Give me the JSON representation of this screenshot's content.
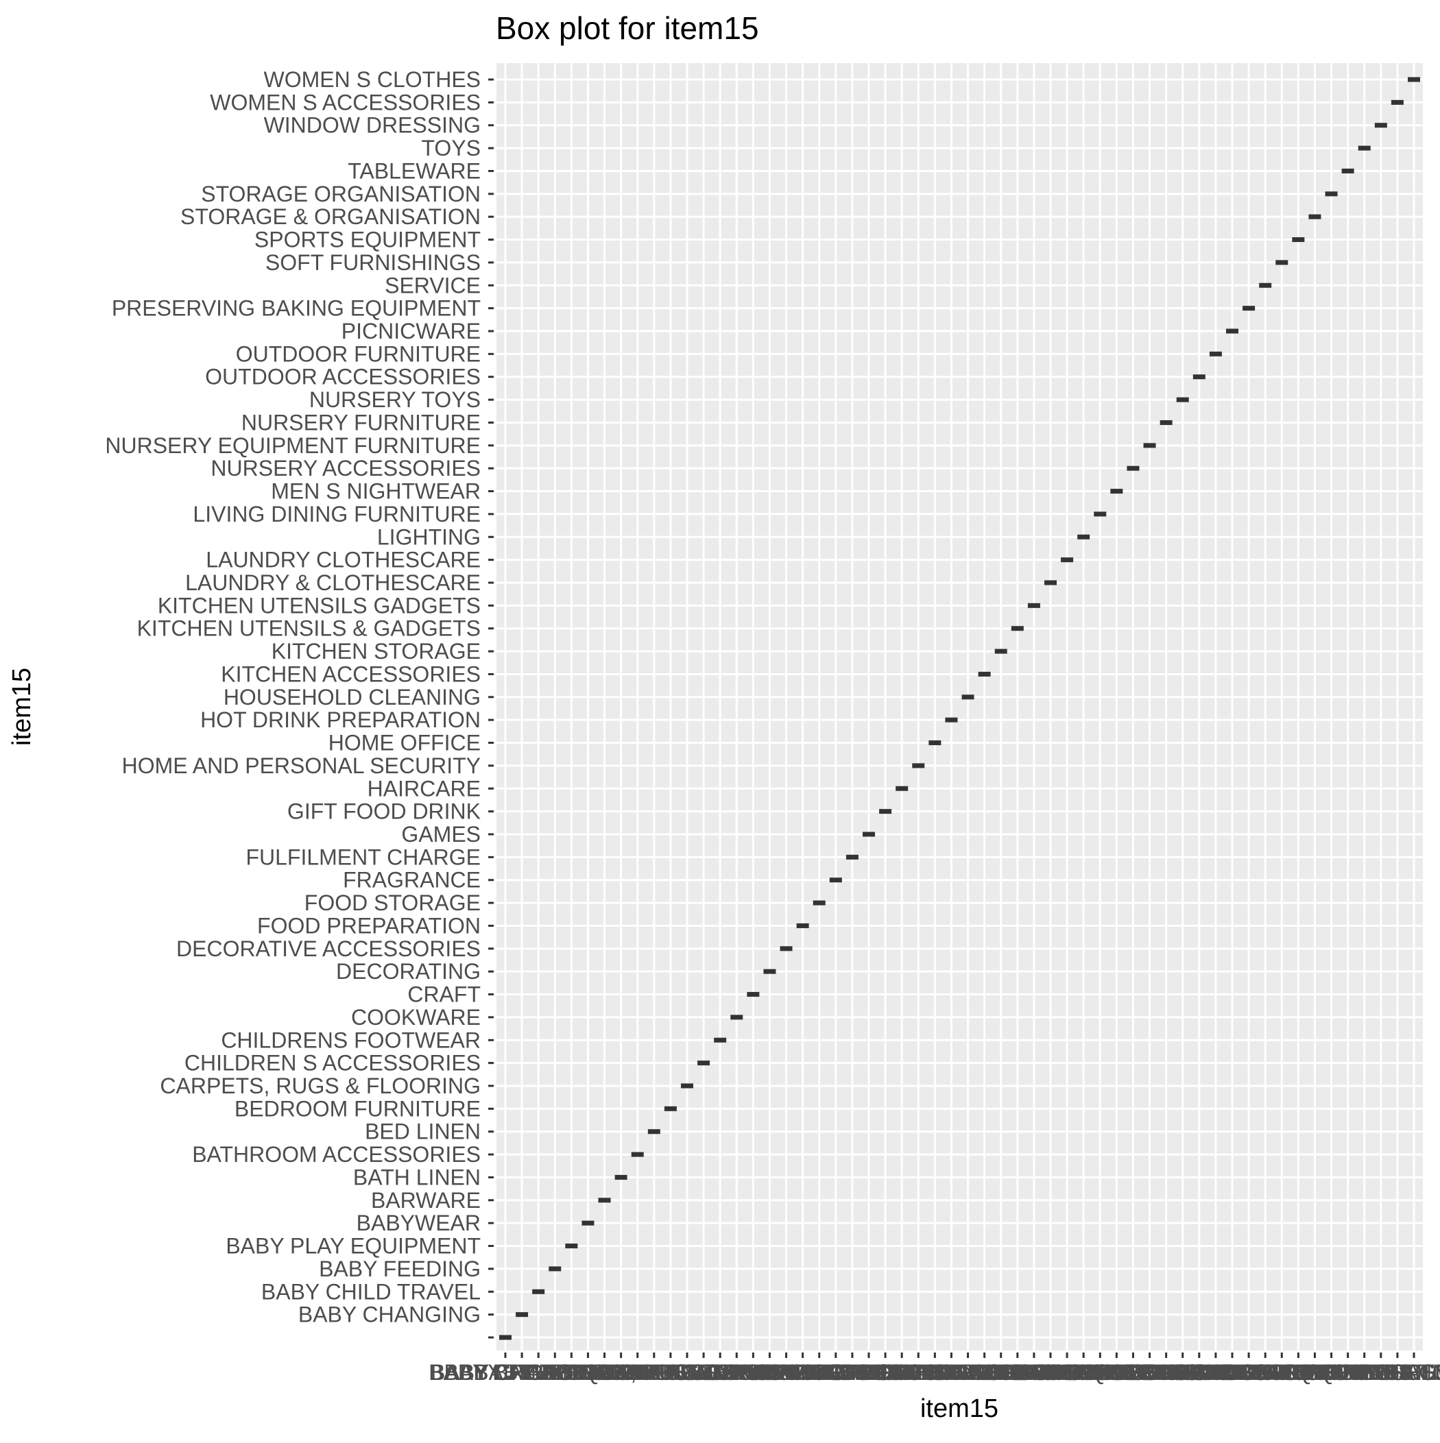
{
  "chart_data": {
    "type": "box",
    "title": "Box plot for item15",
    "xlabel": "item15",
    "ylabel": "item15",
    "categories": [
      "",
      "BABY CHANGING",
      "BABY CHILD TRAVEL",
      "BABY FEEDING",
      "BABY PLAY EQUIPMENT",
      "BABYWEAR",
      "BARWARE",
      "BATH LINEN",
      "BATHROOM ACCESSORIES",
      "BED LINEN",
      "BEDROOM FURNITURE",
      "CARPETS, RUGS & FLOORING",
      "CHILDREN S ACCESSORIES",
      "CHILDRENS FOOTWEAR",
      "COOKWARE",
      "CRAFT",
      "DECORATING",
      "DECORATIVE ACCESSORIES",
      "FOOD PREPARATION",
      "FOOD STORAGE",
      "FRAGRANCE",
      "FULFILMENT CHARGE",
      "GAMES",
      "GIFT FOOD DRINK",
      "HAIRCARE",
      "HOME AND PERSONAL SECURITY",
      "HOME OFFICE",
      "HOT DRINK PREPARATION",
      "HOUSEHOLD CLEANING",
      "KITCHEN ACCESSORIES",
      "KITCHEN STORAGE",
      "KITCHEN UTENSILS & GADGETS",
      "KITCHEN UTENSILS GADGETS",
      "LAUNDRY & CLOTHESCARE",
      "LAUNDRY CLOTHESCARE",
      "LIGHTING",
      "LIVING DINING FURNITURE",
      "MEN S NIGHTWEAR",
      "NURSERY ACCESSORIES",
      "NURSERY EQUIPMENT FURNITURE",
      "NURSERY FURNITURE",
      "NURSERY TOYS",
      "OUTDOOR ACCESSORIES",
      "OUTDOOR FURNITURE",
      "PICNICWARE",
      "PRESERVING BAKING EQUIPMENT",
      "SERVICE",
      "SOFT FURNISHINGS",
      "SPORTS EQUIPMENT",
      "STORAGE & ORGANISATION",
      "STORAGE ORGANISATION",
      "TABLEWARE",
      "TOYS",
      "WINDOW DRESSING",
      "WOMEN S ACCESSORIES",
      "WOMEN S CLOTHES"
    ],
    "note_points": "each category has a single degenerate box at x = its own category (identity diagonal)",
    "grid": true,
    "legend": "none",
    "colors": {
      "panel": "#ebebeb",
      "grid": "#ffffff",
      "box": "#333333",
      "tick_label": "#4d4d4d",
      "text": "#000000"
    }
  }
}
